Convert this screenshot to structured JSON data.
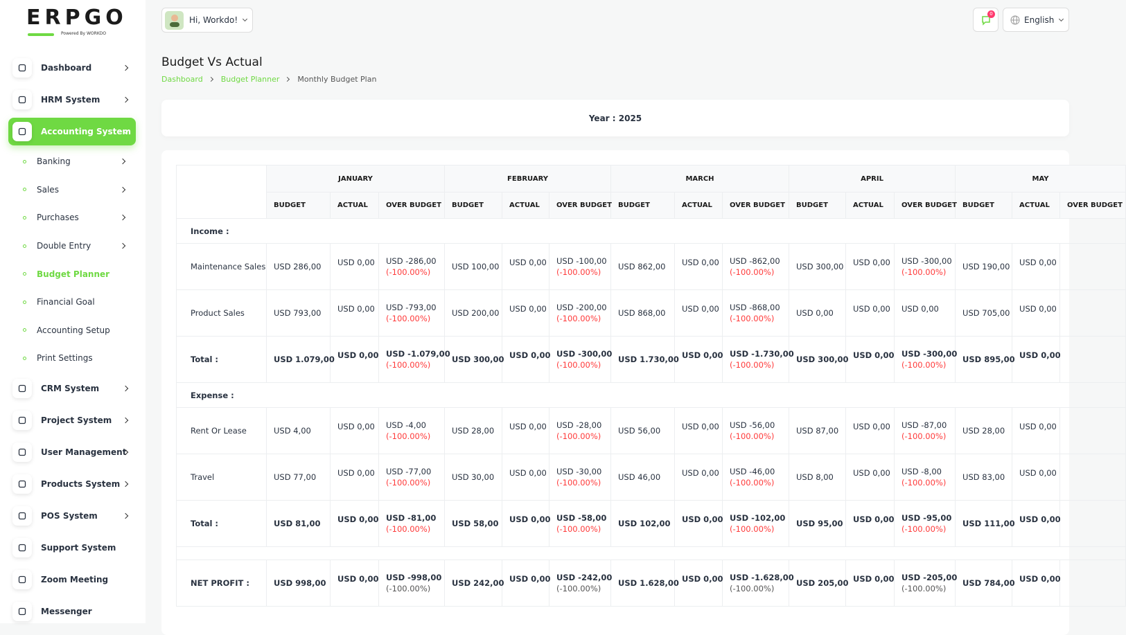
{
  "logo": {
    "text": "ERPGO",
    "tagline": "Powered By WORKDO"
  },
  "header": {
    "greeting": "Hi, Workdo!",
    "notification_count": "0",
    "language": "English"
  },
  "sidebar": {
    "items": [
      {
        "label": "Dashboard",
        "expandable": true
      },
      {
        "label": "HRM System",
        "expandable": true
      },
      {
        "label": "Accounting System",
        "expandable": true,
        "active": true,
        "submenu": [
          {
            "label": "Banking",
            "expandable": true
          },
          {
            "label": "Sales",
            "expandable": true
          },
          {
            "label": "Purchases",
            "expandable": true
          },
          {
            "label": "Double Entry",
            "expandable": true
          },
          {
            "label": "Budget Planner",
            "expandable": false,
            "active": true
          },
          {
            "label": "Financial Goal",
            "expandable": false
          },
          {
            "label": "Accounting Setup",
            "expandable": false
          },
          {
            "label": "Print Settings",
            "expandable": false
          }
        ]
      },
      {
        "label": "CRM System",
        "expandable": true
      },
      {
        "label": "Project System",
        "expandable": true
      },
      {
        "label": "User Management",
        "expandable": true
      },
      {
        "label": "Products System",
        "expandable": true
      },
      {
        "label": "POS System",
        "expandable": true
      },
      {
        "label": "Support System",
        "expandable": false
      },
      {
        "label": "Zoom Meeting",
        "expandable": false
      },
      {
        "label": "Messenger",
        "expandable": false
      }
    ]
  },
  "page": {
    "title": "Budget Vs Actual",
    "breadcrumb": [
      "Dashboard",
      "Budget Planner",
      "Monthly Budget Plan"
    ],
    "year_label": "Year : 2025"
  },
  "table": {
    "months": [
      "JANUARY",
      "FEBRUARY",
      "MARCH",
      "APRIL",
      "MAY"
    ],
    "columns": [
      "BUDGET",
      "ACTUAL",
      "OVER BUDGET"
    ],
    "rows": [
      {
        "section": "Income :"
      },
      {
        "label": "Maintenance Sales",
        "cells": [
          {
            "budget": "USD 286,00",
            "actual": "USD 0,00",
            "over": "USD -286,00",
            "pct": "(-100.00%)"
          },
          {
            "budget": "USD 100,00",
            "actual": "USD 0,00",
            "over": "USD -100,00",
            "pct": "(-100.00%)"
          },
          {
            "budget": "USD 862,00",
            "actual": "USD 0,00",
            "over": "USD -862,00",
            "pct": "(-100.00%)"
          },
          {
            "budget": "USD 300,00",
            "actual": "USD 0,00",
            "over": "USD -300,00",
            "pct": "(-100.00%)"
          },
          {
            "budget": "USD 190,00",
            "actual": "USD 0,00"
          }
        ]
      },
      {
        "label": "Product Sales",
        "cells": [
          {
            "budget": "USD 793,00",
            "actual": "USD 0,00",
            "over": "USD -793,00",
            "pct": "(-100.00%)"
          },
          {
            "budget": "USD 200,00",
            "actual": "USD 0,00",
            "over": "USD -200,00",
            "pct": "(-100.00%)"
          },
          {
            "budget": "USD 868,00",
            "actual": "USD 0,00",
            "over": "USD -868,00",
            "pct": "(-100.00%)"
          },
          {
            "budget": "USD 0,00",
            "actual": "USD 0,00",
            "over": "USD 0,00"
          },
          {
            "budget": "USD 705,00",
            "actual": "USD 0,00"
          }
        ]
      },
      {
        "label": "Total :",
        "bold": true,
        "cells": [
          {
            "budget": "USD 1.079,00",
            "actual": "USD 0,00",
            "over": "USD -1.079,00",
            "pct": "(-100.00%)"
          },
          {
            "budget": "USD 300,00",
            "actual": "USD 0,00",
            "over": "USD -300,00",
            "pct": "(-100.00%)"
          },
          {
            "budget": "USD 1.730,00",
            "actual": "USD 0,00",
            "over": "USD -1.730,00",
            "pct": "(-100.00%)"
          },
          {
            "budget": "USD 300,00",
            "actual": "USD 0,00",
            "over": "USD -300,00",
            "pct": "(-100.00%)"
          },
          {
            "budget": "USD 895,00",
            "actual": "USD 0,00"
          }
        ]
      },
      {
        "section": "Expense :"
      },
      {
        "label": "Rent Or Lease",
        "cells": [
          {
            "budget": "USD 4,00",
            "actual": "USD 0,00",
            "over": "USD -4,00",
            "pct": "(-100.00%)"
          },
          {
            "budget": "USD 28,00",
            "actual": "USD 0,00",
            "over": "USD -28,00",
            "pct": "(-100.00%)"
          },
          {
            "budget": "USD 56,00",
            "actual": "USD 0,00",
            "over": "USD -56,00",
            "pct": "(-100.00%)"
          },
          {
            "budget": "USD 87,00",
            "actual": "USD 0,00",
            "over": "USD -87,00",
            "pct": "(-100.00%)"
          },
          {
            "budget": "USD 28,00",
            "actual": "USD 0,00"
          }
        ]
      },
      {
        "label": "Travel",
        "cells": [
          {
            "budget": "USD 77,00",
            "actual": "USD 0,00",
            "over": "USD -77,00",
            "pct": "(-100.00%)"
          },
          {
            "budget": "USD 30,00",
            "actual": "USD 0,00",
            "over": "USD -30,00",
            "pct": "(-100.00%)"
          },
          {
            "budget": "USD 46,00",
            "actual": "USD 0,00",
            "over": "USD -46,00",
            "pct": "(-100.00%)"
          },
          {
            "budget": "USD 8,00",
            "actual": "USD 0,00",
            "over": "USD -8,00",
            "pct": "(-100.00%)"
          },
          {
            "budget": "USD 83,00",
            "actual": "USD 0,00"
          }
        ]
      },
      {
        "label": "Total :",
        "bold": true,
        "cells": [
          {
            "budget": "USD 81,00",
            "actual": "USD 0,00",
            "over": "USD -81,00",
            "pct": "(-100.00%)"
          },
          {
            "budget": "USD 58,00",
            "actual": "USD 0,00",
            "over": "USD -58,00",
            "pct": "(-100.00%)"
          },
          {
            "budget": "USD 102,00",
            "actual": "USD 0,00",
            "over": "USD -102,00",
            "pct": "(-100.00%)"
          },
          {
            "budget": "USD 95,00",
            "actual": "USD 0,00",
            "over": "USD -95,00",
            "pct": "(-100.00%)"
          },
          {
            "budget": "USD 111,00",
            "actual": "USD 0,00"
          }
        ]
      },
      {
        "spacer": true
      },
      {
        "label": "NET PROFIT :",
        "bold": true,
        "net": true,
        "cells": [
          {
            "budget": "USD 998,00",
            "actual": "USD 0,00",
            "over": "USD -998,00",
            "pct": "(-100.00%)"
          },
          {
            "budget": "USD 242,00",
            "actual": "USD 0,00",
            "over": "USD -242,00",
            "pct": "(-100.00%)"
          },
          {
            "budget": "USD 1.628,00",
            "actual": "USD 0,00",
            "over": "USD -1.628,00",
            "pct": "(-100.00%)"
          },
          {
            "budget": "USD 205,00",
            "actual": "USD 0,00",
            "over": "USD -205,00",
            "pct": "(-100.00%)"
          },
          {
            "budget": "USD 784,00",
            "actual": "USD 0,00"
          }
        ]
      }
    ]
  }
}
